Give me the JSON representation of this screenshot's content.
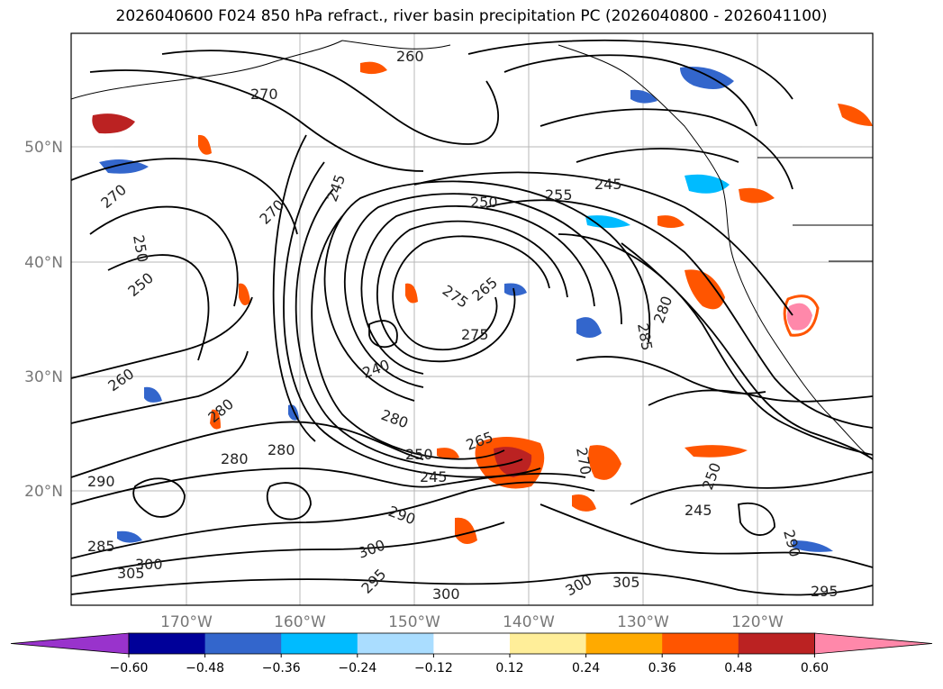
{
  "title": "2026040600 F024 850 hPa refract., river basin precipitation PC (2026040800 - 2026041100)",
  "lat_labels": [
    "50°N",
    "40°N",
    "30°N",
    "20°N"
  ],
  "lon_labels": [
    "170°W",
    "160°W",
    "150°W",
    "140°W",
    "130°W",
    "120°W"
  ],
  "colorbar": {
    "ticks": [
      "−0.60",
      "−0.48",
      "−0.36",
      "−0.24",
      "−0.12",
      "0.12",
      "0.24",
      "0.36",
      "0.48",
      "0.60"
    ],
    "colors": [
      "#9933cc",
      "#000099",
      "#3366cc",
      "#00bbff",
      "#aaddff",
      "#ffffff",
      "#ffee99",
      "#ffaa00",
      "#ff5500",
      "#bb2222",
      "#ff88aa"
    ]
  },
  "contour_labels": [
    "260",
    "270",
    "270",
    "250",
    "250",
    "270",
    "245",
    "250",
    "255",
    "245",
    "275",
    "265",
    "275",
    "240",
    "280",
    "260",
    "290",
    "280",
    "280",
    "280",
    "250",
    "265",
    "245",
    "300",
    "305",
    "300",
    "285",
    "295",
    "300",
    "290",
    "300",
    "305",
    "285",
    "280",
    "270",
    "250",
    "245",
    "295",
    "290"
  ]
}
